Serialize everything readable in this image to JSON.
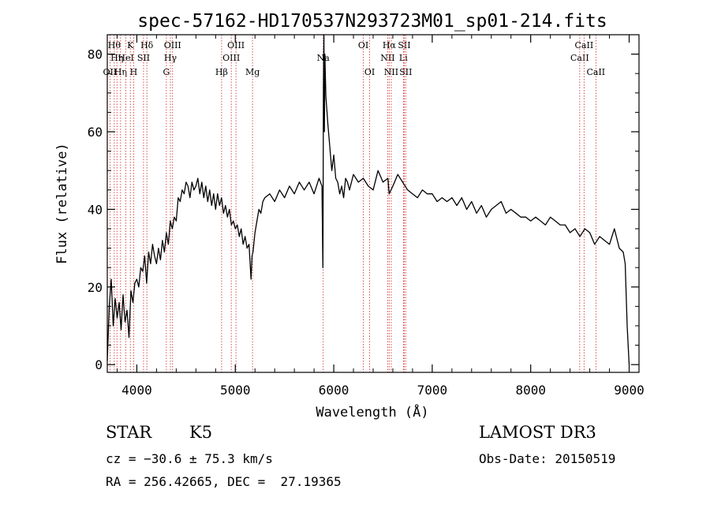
{
  "chart_data": {
    "type": "line",
    "title": "spec-57162-HD170537N293723M01_sp01-214.fits",
    "xlabel": "Wavelength (Å)",
    "ylabel": "Flux (relative)",
    "xlim": [
      3700,
      9100
    ],
    "ylim": [
      -2,
      85
    ],
    "x_ticks": [
      4000,
      5000,
      6000,
      7000,
      8000,
      9000
    ],
    "x_tick_labels": [
      "4000",
      "5000",
      "6000",
      "7000",
      "8000",
      "9000"
    ],
    "y_ticks": [
      0,
      20,
      40,
      60,
      80
    ],
    "y_tick_labels": [
      "0",
      "20",
      "40",
      "60",
      "80"
    ],
    "grid": false,
    "series": [
      {
        "x": [
          3700,
          3720,
          3740,
          3760,
          3780,
          3800,
          3820,
          3840,
          3860,
          3880,
          3900,
          3920,
          3940,
          3960,
          3980,
          4000,
          4020,
          4040,
          4060,
          4080,
          4100,
          4120,
          4140,
          4160,
          4180,
          4200,
          4220,
          4240,
          4260,
          4280,
          4300,
          4320,
          4340,
          4360,
          4380,
          4400,
          4420,
          4440,
          4460,
          4480,
          4500,
          4520,
          4540,
          4560,
          4580,
          4600,
          4620,
          4640,
          4660,
          4680,
          4700,
          4720,
          4740,
          4760,
          4780,
          4800,
          4820,
          4840,
          4860,
          4880,
          4900,
          4920,
          4940,
          4960,
          4980,
          5000,
          5020,
          5040,
          5060,
          5080,
          5100,
          5120,
          5140,
          5160,
          5170,
          5180,
          5200,
          5220,
          5240,
          5260,
          5280,
          5300,
          5350,
          5400,
          5450,
          5500,
          5550,
          5600,
          5650,
          5700,
          5750,
          5800,
          5850,
          5880,
          5890,
          5895,
          5900,
          5905,
          5910,
          5920,
          5940,
          5960,
          5980,
          6000,
          6020,
          6040,
          6060,
          6080,
          6100,
          6120,
          6140,
          6160,
          6200,
          6250,
          6300,
          6350,
          6400,
          6450,
          6500,
          6550,
          6563,
          6600,
          6650,
          6700,
          6750,
          6800,
          6850,
          6900,
          6950,
          7000,
          7050,
          7100,
          7150,
          7200,
          7250,
          7300,
          7350,
          7400,
          7450,
          7500,
          7550,
          7600,
          7650,
          7700,
          7750,
          7800,
          7850,
          7900,
          7950,
          8000,
          8050,
          8100,
          8150,
          8200,
          8250,
          8300,
          8350,
          8400,
          8450,
          8500,
          8550,
          8600,
          8650,
          8700,
          8750,
          8800,
          8850,
          8900,
          8940,
          8960,
          8980,
          9000
        ],
        "y": [
          1,
          15,
          22,
          10,
          17,
          12,
          16,
          9,
          18,
          11,
          14,
          7,
          19,
          16,
          21,
          22,
          20,
          25,
          24,
          28,
          21,
          29,
          26,
          31,
          28,
          26,
          30,
          27,
          32,
          29,
          34,
          31,
          37,
          35,
          38,
          37,
          43,
          42,
          45,
          44,
          47,
          46,
          43,
          47,
          45,
          46,
          48,
          44,
          47,
          43,
          46,
          42,
          45,
          41,
          44,
          40,
          44,
          41,
          43,
          39,
          41,
          38,
          40,
          36,
          37,
          35,
          36,
          33,
          35,
          31,
          33,
          30,
          31,
          22,
          28,
          29,
          34,
          37,
          40,
          39,
          42,
          43,
          44,
          42,
          45,
          43,
          46,
          44,
          47,
          45,
          47,
          44,
          48,
          46,
          25,
          72,
          86,
          60,
          80,
          69,
          62,
          56,
          50,
          54,
          48,
          47,
          44,
          46,
          43,
          48,
          47,
          45,
          49,
          47,
          48,
          46,
          45,
          50,
          47,
          48,
          44,
          46,
          49,
          47,
          45,
          44,
          43,
          45,
          44,
          44,
          42,
          43,
          42,
          43,
          41,
          43,
          40,
          42,
          39,
          41,
          38,
          40,
          41,
          42,
          39,
          40,
          39,
          38,
          38,
          37,
          38,
          37,
          36,
          38,
          37,
          36,
          36,
          34,
          35,
          33,
          35,
          34,
          31,
          33,
          32,
          31,
          35,
          30,
          29,
          26,
          10,
          0
        ]
      }
    ],
    "lines": [
      {
        "wl": 3727,
        "row": 2,
        "label": "OII"
      },
      {
        "wl": 3771,
        "row": 0,
        "label": "Hθ"
      },
      {
        "wl": 3798,
        "row": 1,
        "label": "Hη"
      },
      {
        "wl": 3835,
        "row": 2,
        "label": "Hη"
      },
      {
        "wl": 3889,
        "row": 1,
        "label": "HeI"
      },
      {
        "wl": 3934,
        "row": 0,
        "label": "K"
      },
      {
        "wl": 3968,
        "row": 2,
        "label": "H"
      },
      {
        "wl": 4068,
        "row": 1,
        "label": "SII"
      },
      {
        "wl": 4102,
        "row": 0,
        "label": "Hδ"
      },
      {
        "wl": 4300,
        "row": 2,
        "label": "G"
      },
      {
        "wl": 4341,
        "row": 1,
        "label": "Hγ"
      },
      {
        "wl": 4363,
        "row": 0,
        "label": "OIII"
      },
      {
        "wl": 4861,
        "row": 2,
        "label": "Hβ"
      },
      {
        "wl": 4959,
        "row": 1,
        "label": "OIII"
      },
      {
        "wl": 5007,
        "row": 0,
        "label": "OIII"
      },
      {
        "wl": 5175,
        "row": 2,
        "label": "Mg"
      },
      {
        "wl": 5893,
        "row": 1,
        "label": "Na"
      },
      {
        "wl": 6300,
        "row": 0,
        "label": "OI"
      },
      {
        "wl": 6364,
        "row": 2,
        "label": "OI"
      },
      {
        "wl": 6548,
        "row": 1,
        "label": "NII"
      },
      {
        "wl": 6563,
        "row": 0,
        "label": "Hα"
      },
      {
        "wl": 6584,
        "row": 2,
        "label": "NII"
      },
      {
        "wl": 6707,
        "row": 1,
        "label": "Li"
      },
      {
        "wl": 6716,
        "row": 0,
        "label": "SII"
      },
      {
        "wl": 6731,
        "row": 2,
        "label": "SII"
      },
      {
        "wl": 8498,
        "row": 1,
        "label": "CaII"
      },
      {
        "wl": 8542,
        "row": 0,
        "label": "CaII"
      },
      {
        "wl": 8662,
        "row": 2,
        "label": "CaII"
      }
    ],
    "line_color": "#cc2222",
    "spectrum_color": "#000000"
  },
  "info": {
    "object_type": "STAR",
    "subclass": "K5",
    "survey": "LAMOST DR3",
    "cz": "cz = −30.6 ± 75.3 km/s",
    "obs_date": "Obs-Date: 20150519",
    "coords": "RA = 256.42665, DEC =  27.19365"
  }
}
